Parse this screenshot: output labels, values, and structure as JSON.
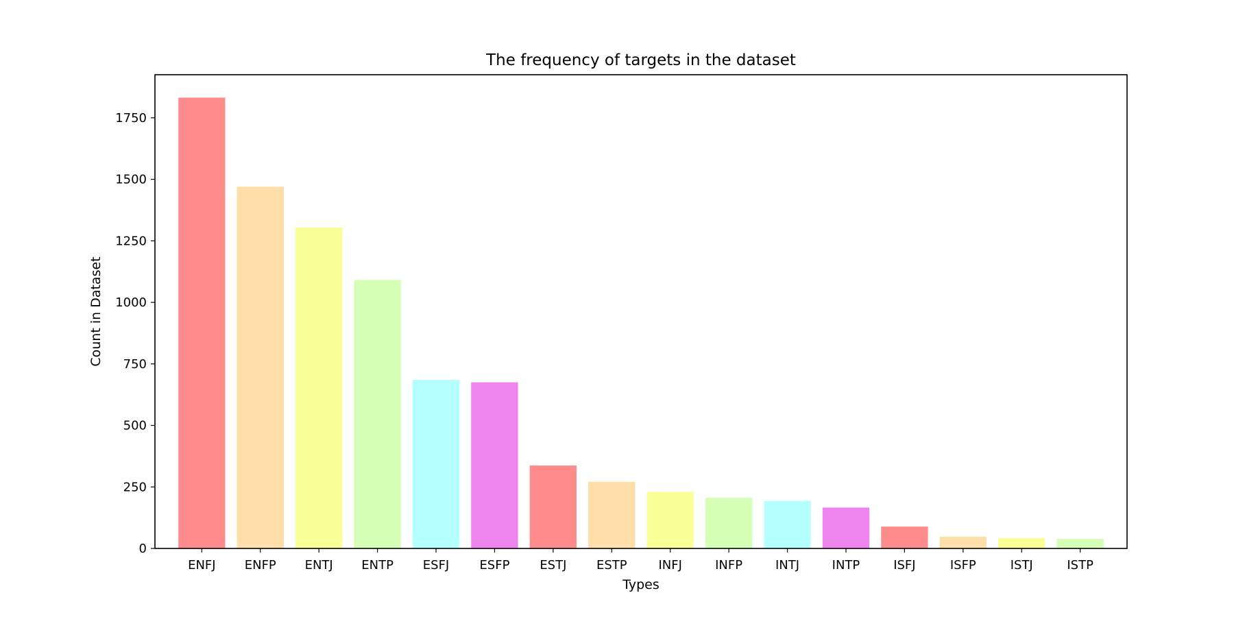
{
  "chart_data": {
    "type": "bar",
    "title": "The frequency of targets in the dataset",
    "xlabel": "Types",
    "ylabel": "Count in Dataset",
    "categories": [
      "ENFJ",
      "ENFP",
      "ENTJ",
      "ENTP",
      "ESFJ",
      "ESFP",
      "ESTJ",
      "ESTP",
      "INFJ",
      "INFP",
      "INTJ",
      "INTP",
      "ISFJ",
      "ISFP",
      "ISTJ",
      "ISTP"
    ],
    "values": [
      1832,
      1470,
      1304,
      1091,
      685,
      675,
      337,
      271,
      230,
      206,
      193,
      166,
      89,
      48,
      42,
      39
    ],
    "colors": [
      "#ff8c8c",
      "#ffdeaa",
      "#faff96",
      "#d5ffb4",
      "#b4ffff",
      "#ee85ee",
      "#ff8c8c",
      "#ffdeaa",
      "#faff96",
      "#d5ffb4",
      "#b4ffff",
      "#ee85ee",
      "#ff8c8c",
      "#ffdeaa",
      "#faff96",
      "#d5ffb4"
    ],
    "ylim": [
      0,
      1925
    ],
    "yticks": [
      0,
      250,
      500,
      750,
      1000,
      1250,
      1500,
      1750
    ],
    "grid": false,
    "legend": "none"
  }
}
